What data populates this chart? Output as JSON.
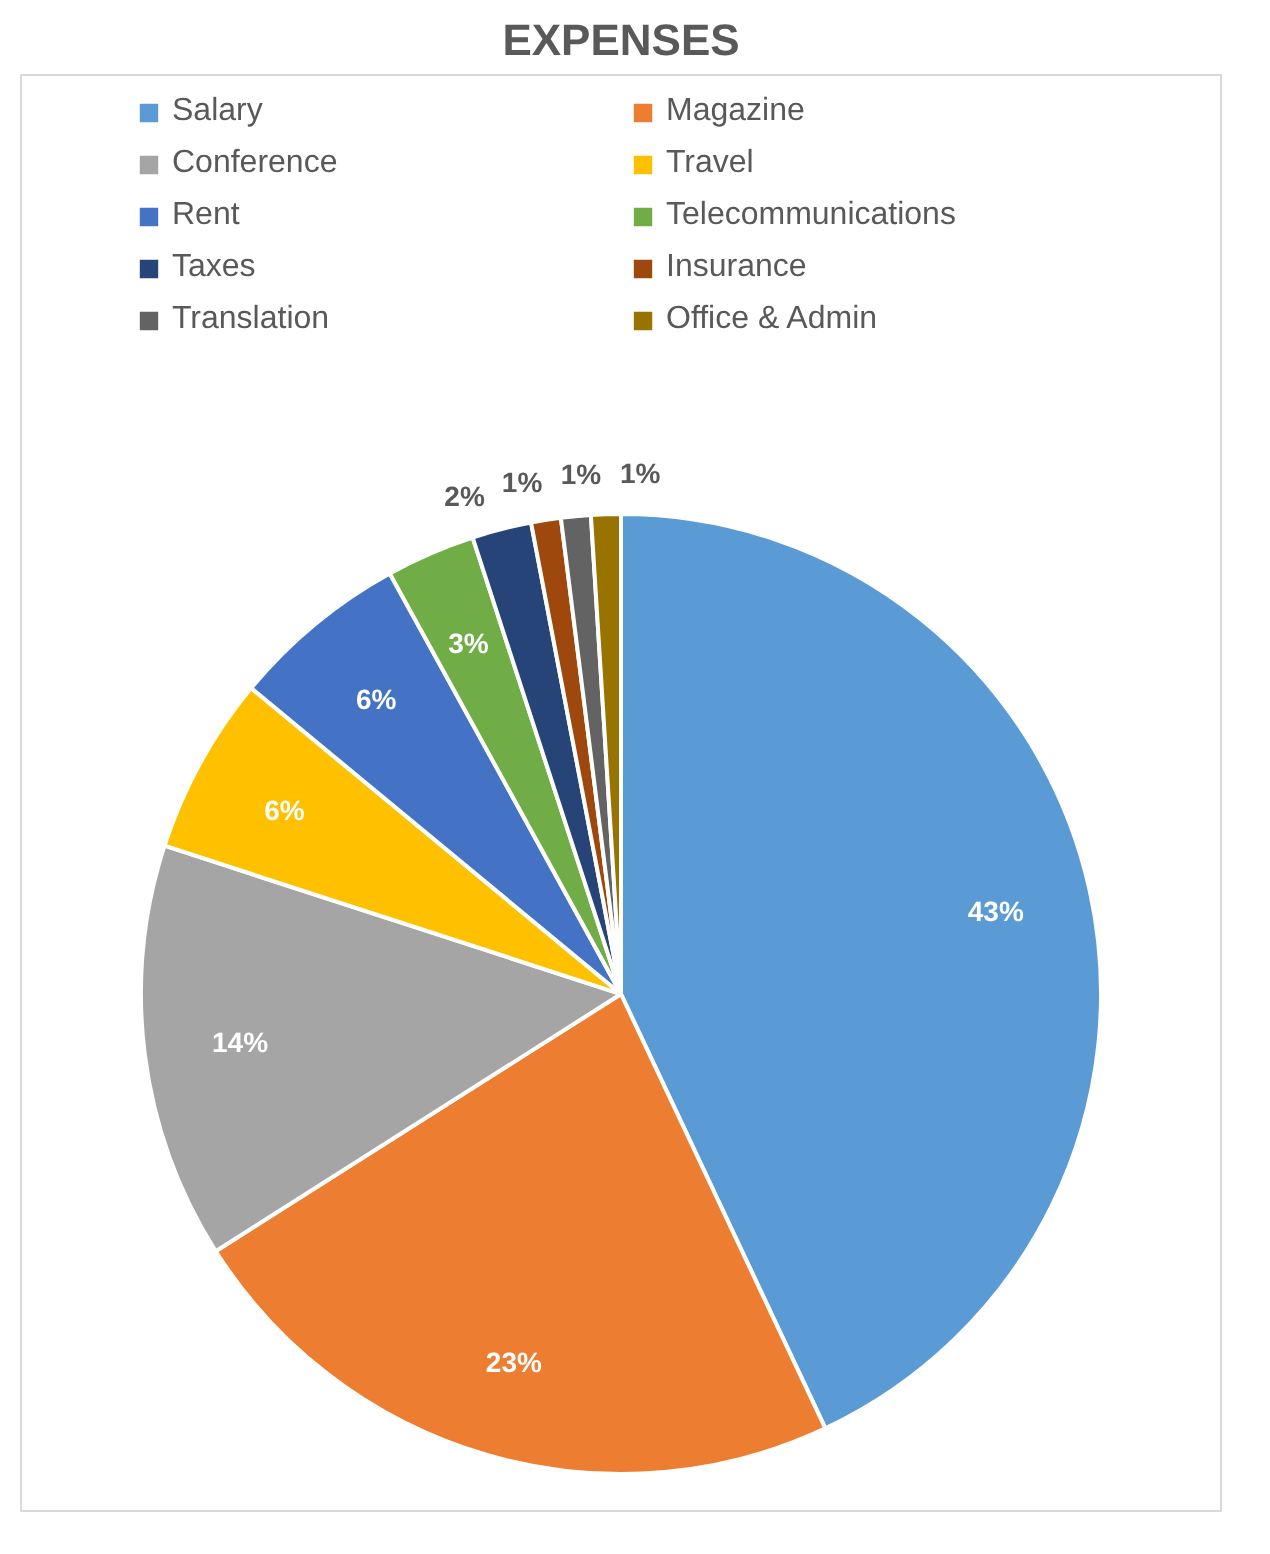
{
  "chart_data": {
    "type": "pie",
    "title": "EXPENSES",
    "categories": [
      "Salary",
      "Magazine",
      "Conference",
      "Travel",
      "Rent",
      "Telecommunications",
      "Taxes",
      "Insurance",
      "Translation",
      "Office & Admin"
    ],
    "values": [
      43,
      23,
      14,
      6,
      6,
      3,
      2,
      1,
      1,
      1
    ],
    "colors": [
      "#5b9bd5",
      "#ed7d31",
      "#a5a5a5",
      "#ffc000",
      "#4472c4",
      "#70ad47",
      "#264478",
      "#9e480e",
      "#636363",
      "#997300"
    ],
    "value_labels": [
      "43%",
      "23%",
      "14%",
      "6%",
      "6%",
      "3%",
      "2%",
      "1%",
      "1%",
      "1%"
    ],
    "legend": "top"
  }
}
